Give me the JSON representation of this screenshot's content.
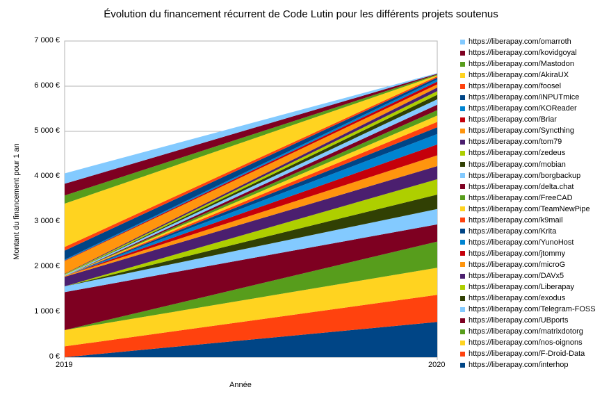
{
  "chart_data": {
    "type": "area",
    "stacked": true,
    "title": "Évolution du financement récurrent de Code Lutin pour les différents projets soutenus",
    "xlabel": "Année",
    "ylabel": "Montant du financement pour 1 an",
    "x": [
      "2019",
      "2020"
    ],
    "ylim": [
      0,
      7000
    ],
    "yticks": [
      0,
      1000,
      2000,
      3000,
      4000,
      5000,
      6000,
      7000
    ],
    "ytick_labels": [
      "0 €",
      "1 000 €",
      "2 000 €",
      "3 000 €",
      "4 000 €",
      "5 000 €",
      "6 000 €",
      "7 000 €"
    ],
    "grid": true,
    "legend_position": "right",
    "series": [
      {
        "name": "https://liberapay.com/interhop",
        "color": "#004586",
        "values": [
          0,
          780
        ]
      },
      {
        "name": "https://liberapay.com/F-Droid-Data",
        "color": "#ff420e",
        "values": [
          240,
          600
        ]
      },
      {
        "name": "https://liberapay.com/nos-oignons",
        "color": "#ffd320",
        "values": [
          360,
          600
        ]
      },
      {
        "name": "https://liberapay.com/matrixdotorg",
        "color": "#579d1c",
        "values": [
          0,
          580
        ]
      },
      {
        "name": "https://liberapay.com/UBports",
        "color": "#7e0021",
        "values": [
          840,
          380
        ]
      },
      {
        "name": "https://liberapay.com/Telegram-FOSS",
        "color": "#83caff",
        "values": [
          130,
          340
        ]
      },
      {
        "name": "https://liberapay.com/exodus",
        "color": "#314004",
        "values": [
          0,
          320
        ]
      },
      {
        "name": "https://liberapay.com/Liberapay",
        "color": "#aecf00",
        "values": [
          0,
          340
        ]
      },
      {
        "name": "https://liberapay.com/DAVx5",
        "color": "#4b1f6f",
        "values": [
          210,
          290
        ]
      },
      {
        "name": "https://liberapay.com/microG",
        "color": "#ff950e",
        "values": [
          20,
          240
        ]
      },
      {
        "name": "https://liberapay.com/jtommy",
        "color": "#c5000b",
        "values": [
          0,
          240
        ]
      },
      {
        "name": "https://liberapay.com/YunoHost",
        "color": "#0084d1",
        "values": [
          0,
          230
        ]
      },
      {
        "name": "https://liberapay.com/Krita",
        "color": "#004586",
        "values": [
          0,
          150
        ]
      },
      {
        "name": "https://liberapay.com/k9mail",
        "color": "#ff420e",
        "values": [
          0,
          120
        ]
      },
      {
        "name": "https://liberapay.com/TeamNewPipe",
        "color": "#ffd320",
        "values": [
          0,
          140
        ]
      },
      {
        "name": "https://liberapay.com/FreeCAD",
        "color": "#579d1c",
        "values": [
          0,
          120
        ]
      },
      {
        "name": "https://liberapay.com/delta.chat",
        "color": "#7e0021",
        "values": [
          0,
          120
        ]
      },
      {
        "name": "https://liberapay.com/borgbackup",
        "color": "#83caff",
        "values": [
          20,
          120
        ]
      },
      {
        "name": "https://liberapay.com/mobian",
        "color": "#314004",
        "values": [
          0,
          100
        ]
      },
      {
        "name": "https://liberapay.com/zedeus",
        "color": "#aecf00",
        "values": [
          20,
          80
        ]
      },
      {
        "name": "https://liberapay.com/tom79",
        "color": "#4b1f6f",
        "values": [
          10,
          80
        ]
      },
      {
        "name": "https://liberapay.com/Syncthing",
        "color": "#ff950e",
        "values": [
          280,
          70
        ]
      },
      {
        "name": "https://liberapay.com/Briar",
        "color": "#c5000b",
        "values": [
          10,
          60
        ]
      },
      {
        "name": "https://liberapay.com/KOReader",
        "color": "#0084d1",
        "values": [
          20,
          50
        ]
      },
      {
        "name": "https://liberapay.com/iNPUTmice",
        "color": "#004586",
        "values": [
          200,
          40
        ]
      },
      {
        "name": "https://liberapay.com/foosel",
        "color": "#ff420e",
        "values": [
          80,
          30
        ]
      },
      {
        "name": "https://liberapay.com/AkiraUX",
        "color": "#ffd320",
        "values": [
          960,
          20
        ]
      },
      {
        "name": "https://liberapay.com/Mastodon",
        "color": "#579d1c",
        "values": [
          180,
          20
        ]
      },
      {
        "name": "https://liberapay.com/kovidgoyal",
        "color": "#7e0021",
        "values": [
          260,
          15
        ]
      },
      {
        "name": "https://liberapay.com/omarroth",
        "color": "#83caff",
        "values": [
          230,
          15
        ]
      }
    ]
  }
}
